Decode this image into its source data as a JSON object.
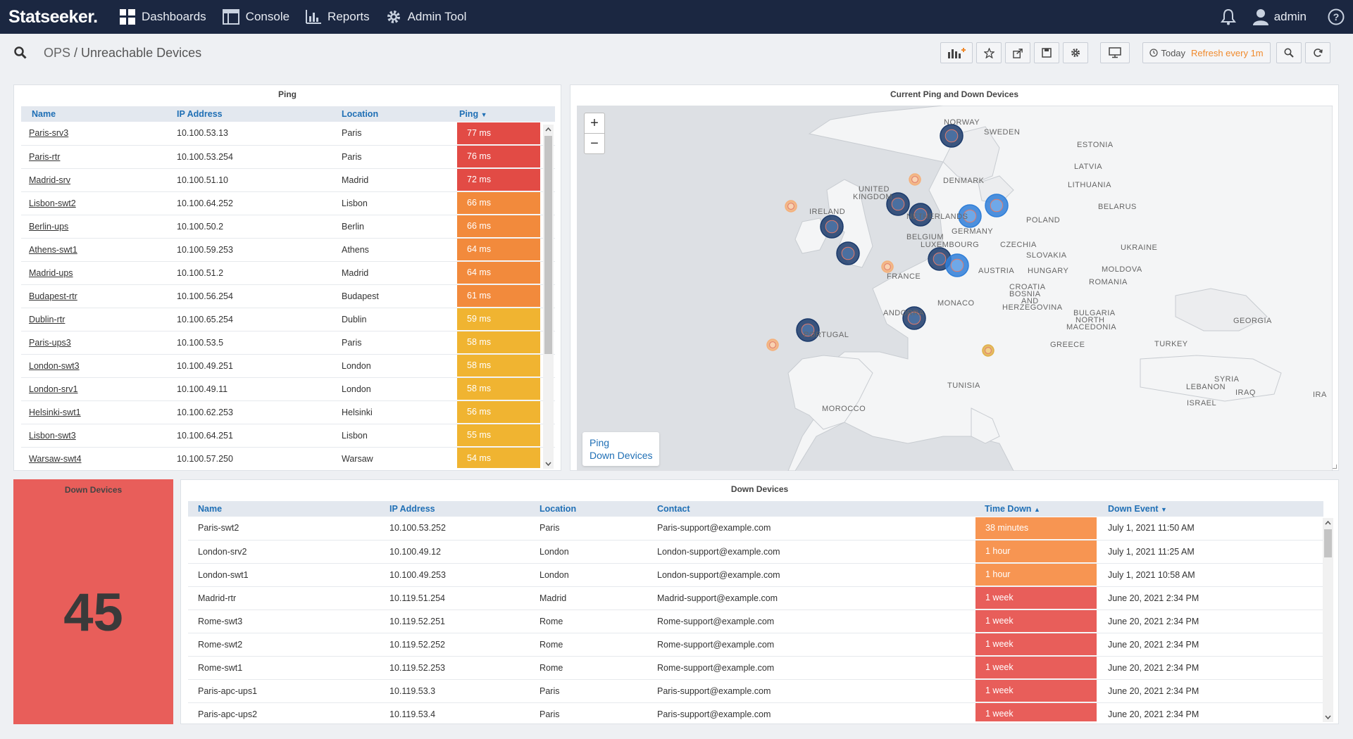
{
  "brand": "Statseeker.",
  "nav": {
    "dashboards": "Dashboards",
    "console": "Console",
    "reports": "Reports",
    "admin_tool": "Admin Tool",
    "user": "admin"
  },
  "breadcrumb": {
    "root": "OPS",
    "sep": " / ",
    "page": "Unreachable Devices"
  },
  "toolbar": {
    "time": "Today",
    "refresh": "Refresh every 1m"
  },
  "ping_panel": {
    "title": "Ping",
    "columns": [
      "Name",
      "IP Address",
      "Location",
      "Ping"
    ],
    "rows": [
      {
        "name": "Paris-srv3",
        "ip": "10.100.53.13",
        "location": "Paris",
        "ping": "77 ms",
        "color": "#e24b45"
      },
      {
        "name": "Paris-rtr",
        "ip": "10.100.53.254",
        "location": "Paris",
        "ping": "76 ms",
        "color": "#e24b45"
      },
      {
        "name": "Madrid-srv",
        "ip": "10.100.51.10",
        "location": "Madrid",
        "ping": "72 ms",
        "color": "#e24b45"
      },
      {
        "name": "Lisbon-swt2",
        "ip": "10.100.64.252",
        "location": "Lisbon",
        "ping": "66 ms",
        "color": "#f28a3c"
      },
      {
        "name": "Berlin-ups",
        "ip": "10.100.50.2",
        "location": "Berlin",
        "ping": "66 ms",
        "color": "#f28a3c"
      },
      {
        "name": "Athens-swt1",
        "ip": "10.100.59.253",
        "location": "Athens",
        "ping": "64 ms",
        "color": "#f28a3c"
      },
      {
        "name": "Madrid-ups",
        "ip": "10.100.51.2",
        "location": "Madrid",
        "ping": "64 ms",
        "color": "#f28a3c"
      },
      {
        "name": "Budapest-rtr",
        "ip": "10.100.56.254",
        "location": "Budapest",
        "ping": "61 ms",
        "color": "#f28a3c"
      },
      {
        "name": "Dublin-rtr",
        "ip": "10.100.65.254",
        "location": "Dublin",
        "ping": "59 ms",
        "color": "#f0b431"
      },
      {
        "name": "Paris-ups3",
        "ip": "10.100.53.5",
        "location": "Paris",
        "ping": "58 ms",
        "color": "#f0b431"
      },
      {
        "name": "London-swt3",
        "ip": "10.100.49.251",
        "location": "London",
        "ping": "58 ms",
        "color": "#f0b431"
      },
      {
        "name": "London-srv1",
        "ip": "10.100.49.11",
        "location": "London",
        "ping": "58 ms",
        "color": "#f0b431"
      },
      {
        "name": "Helsinki-swt1",
        "ip": "10.100.62.253",
        "location": "Helsinki",
        "ping": "56 ms",
        "color": "#f0b431"
      },
      {
        "name": "Lisbon-swt3",
        "ip": "10.100.64.251",
        "location": "Lisbon",
        "ping": "55 ms",
        "color": "#f0b431"
      },
      {
        "name": "Warsaw-swt4",
        "ip": "10.100.57.250",
        "location": "Warsaw",
        "ping": "54 ms",
        "color": "#f0b431"
      }
    ]
  },
  "map_panel": {
    "title": "Current Ping and Down Devices",
    "zoom_in": "+",
    "zoom_out": "−",
    "legend": [
      "Ping",
      "Down Devices"
    ],
    "labels": [
      "NORWAY",
      "SWEDEN",
      "ESTONIA",
      "LATVIA",
      "DENMARK",
      "LITHUANIA",
      "UNITED",
      "KINGDOM",
      "IRELAND",
      "NETHERLANDS",
      "BELARUS",
      "POLAND",
      "BELGIUM",
      "GERMANY",
      "LUXEMBOURG",
      "CZECHIA",
      "SLOVAKIA",
      "UKRAINE",
      "AUSTRIA",
      "HUNGARY",
      "MOLDOVA",
      "FRANCE",
      "CROATIA",
      "BOSNIA",
      "AND",
      "HERZEGOVINA",
      "ROMANIA",
      "MONACO",
      "ANDORRA",
      "BULGARIA",
      "NORTH",
      "MACEDONIA",
      "GEORGIA",
      "PORTUGAL",
      "GREECE",
      "TURKEY",
      "TUNISIA",
      "SYRIA",
      "LEBANON",
      "IRAQ",
      "ISRAEL",
      "IRA",
      "MOROCCO"
    ]
  },
  "count_panel": {
    "title": "Down Devices",
    "value": "45"
  },
  "down_panel": {
    "title": "Down Devices",
    "columns": [
      "Name",
      "IP Address",
      "Location",
      "Contact",
      "Time Down",
      "Down Event"
    ],
    "rows": [
      {
        "name": "Paris-swt2",
        "ip": "10.100.53.252",
        "location": "Paris",
        "contact": "Paris-support@example.com",
        "time": "38 minutes",
        "event": "July 1, 2021 11:50 AM",
        "color": "#f79552"
      },
      {
        "name": "London-srv2",
        "ip": "10.100.49.12",
        "location": "London",
        "contact": "London-support@example.com",
        "time": "1 hour",
        "event": "July 1, 2021 11:25 AM",
        "color": "#f79552"
      },
      {
        "name": "London-swt1",
        "ip": "10.100.49.253",
        "location": "London",
        "contact": "London-support@example.com",
        "time": "1 hour",
        "event": "July 1, 2021 10:58 AM",
        "color": "#f79552"
      },
      {
        "name": "Madrid-rtr",
        "ip": "10.119.51.254",
        "location": "Madrid",
        "contact": "Madrid-support@example.com",
        "time": "1 week",
        "event": "June 20, 2021 2:34 PM",
        "color": "#e85e5a"
      },
      {
        "name": "Rome-swt3",
        "ip": "10.119.52.251",
        "location": "Rome",
        "contact": "Rome-support@example.com",
        "time": "1 week",
        "event": "June 20, 2021 2:34 PM",
        "color": "#e85e5a"
      },
      {
        "name": "Rome-swt2",
        "ip": "10.119.52.252",
        "location": "Rome",
        "contact": "Rome-support@example.com",
        "time": "1 week",
        "event": "June 20, 2021 2:34 PM",
        "color": "#e85e5a"
      },
      {
        "name": "Rome-swt1",
        "ip": "10.119.52.253",
        "location": "Rome",
        "contact": "Rome-support@example.com",
        "time": "1 week",
        "event": "June 20, 2021 2:34 PM",
        "color": "#e85e5a"
      },
      {
        "name": "Paris-apc-ups1",
        "ip": "10.119.53.3",
        "location": "Paris",
        "contact": "Paris-support@example.com",
        "time": "1 week",
        "event": "June 20, 2021 2:34 PM",
        "color": "#e85e5a"
      },
      {
        "name": "Paris-apc-ups2",
        "ip": "10.119.53.4",
        "location": "Paris",
        "contact": "Paris-support@example.com",
        "time": "1 week",
        "event": "June 20, 2021 2:34 PM",
        "color": "#e85e5a"
      }
    ]
  }
}
